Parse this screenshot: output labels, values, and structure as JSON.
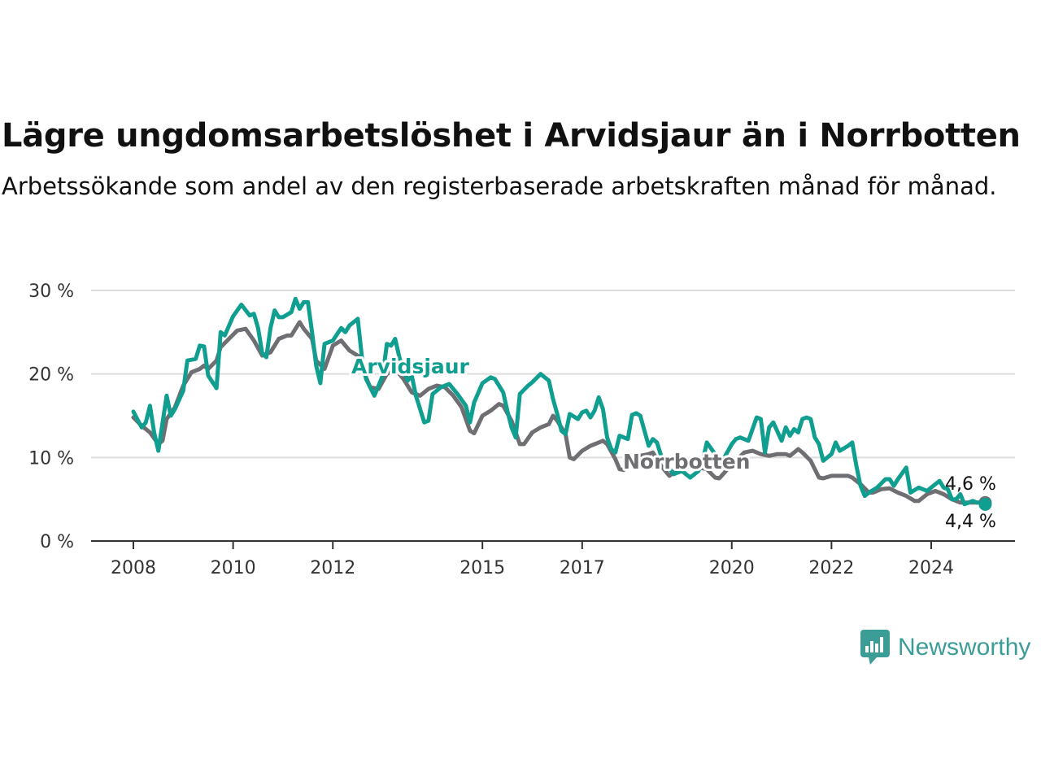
{
  "title": "Lägre ungdomsarbetslöshet i Arvidsjaur än i Norrbotten",
  "subtitle": "Arbetssökande som andel av den registerbaserade arbetskraften månad för månad.",
  "logo_text": "Newsworthy",
  "colors": {
    "arvidsjaur": "#0f9e8f",
    "norrbotten": "#6e6e73",
    "grid": "#dddddd",
    "axis": "#333333",
    "logo": "#3c9d96"
  },
  "chart_data": {
    "type": "line",
    "title": "Lägre ungdomsarbetslöshet i Arvidsjaur än i Norrbotten",
    "ylim": [
      0,
      30
    ],
    "yticks": [
      0,
      10,
      20,
      30
    ],
    "ytick_labels": [
      "0 %",
      "10 %",
      "20 %",
      "30 %"
    ],
    "xlim": [
      "2008-01",
      "2024-12"
    ],
    "xticks": [
      "2008-01",
      "2010-01",
      "2012-01",
      "2015-01",
      "2017-01",
      "2020-01",
      "2022-01",
      "2024-01"
    ],
    "xtick_labels": [
      "2008",
      "2010",
      "2012",
      "2015",
      "2017",
      "2020",
      "2022",
      "2024"
    ],
    "grid": true,
    "legend": "direct labels",
    "end_labels": [
      "4,6 %",
      "4,4 %"
    ],
    "series": [
      {
        "name": "Arvidsjaur",
        "points": [
          [
            "2008-01",
            15.5
          ],
          [
            "2008-03",
            13.6
          ],
          [
            "2008-04",
            14.2
          ],
          [
            "2008-05",
            16.2
          ],
          [
            "2008-06",
            13.0
          ],
          [
            "2008-07",
            10.8
          ],
          [
            "2008-09",
            17.4
          ],
          [
            "2008-10",
            15.0
          ],
          [
            "2008-11",
            15.8
          ],
          [
            "2009-01",
            18.0
          ],
          [
            "2009-02",
            21.6
          ],
          [
            "2009-04",
            21.8
          ],
          [
            "2009-05",
            23.4
          ],
          [
            "2009-06",
            23.3
          ],
          [
            "2009-07",
            19.8
          ],
          [
            "2009-09",
            18.3
          ],
          [
            "2009-10",
            25.0
          ],
          [
            "2009-11",
            24.6
          ],
          [
            "2010-01",
            26.9
          ],
          [
            "2010-03",
            28.3
          ],
          [
            "2010-05",
            27.0
          ],
          [
            "2010-06",
            27.2
          ],
          [
            "2010-07",
            25.5
          ],
          [
            "2010-08",
            22.5
          ],
          [
            "2010-09",
            22.0
          ],
          [
            "2010-10",
            25.5
          ],
          [
            "2010-11",
            27.6
          ],
          [
            "2010-12",
            26.8
          ],
          [
            "2011-01",
            26.8
          ],
          [
            "2011-03",
            27.4
          ],
          [
            "2011-04",
            29.0
          ],
          [
            "2011-05",
            27.8
          ],
          [
            "2011-06",
            28.6
          ],
          [
            "2011-07",
            28.6
          ],
          [
            "2011-08",
            25.0
          ],
          [
            "2011-09",
            21.0
          ],
          [
            "2011-10",
            18.9
          ],
          [
            "2011-11",
            23.6
          ],
          [
            "2012-01",
            24.0
          ],
          [
            "2012-03",
            25.5
          ],
          [
            "2012-04",
            25.0
          ],
          [
            "2012-05",
            25.8
          ],
          [
            "2012-07",
            26.6
          ],
          [
            "2012-08",
            22.0
          ],
          [
            "2012-09",
            19.4
          ],
          [
            "2012-11",
            17.4
          ],
          [
            "2013-01",
            19.8
          ],
          [
            "2013-02",
            23.6
          ],
          [
            "2013-03",
            23.4
          ],
          [
            "2013-04",
            24.2
          ],
          [
            "2013-05",
            22.0
          ],
          [
            "2013-06",
            20.6
          ],
          [
            "2013-07",
            19.2
          ],
          [
            "2013-08",
            19.8
          ],
          [
            "2013-09",
            17.4
          ],
          [
            "2013-11",
            14.2
          ],
          [
            "2013-12",
            14.4
          ],
          [
            "2014-01",
            17.6
          ],
          [
            "2014-03",
            18.4
          ],
          [
            "2014-05",
            18.8
          ],
          [
            "2014-07",
            17.6
          ],
          [
            "2014-09",
            16.2
          ],
          [
            "2014-10",
            14.2
          ],
          [
            "2014-11",
            16.6
          ],
          [
            "2015-01",
            18.9
          ],
          [
            "2015-03",
            19.6
          ],
          [
            "2015-04",
            19.4
          ],
          [
            "2015-06",
            17.8
          ],
          [
            "2015-07",
            15.6
          ],
          [
            "2015-08",
            13.6
          ],
          [
            "2015-09",
            12.4
          ],
          [
            "2015-10",
            17.6
          ],
          [
            "2015-12",
            18.6
          ],
          [
            "2016-01",
            19.0
          ],
          [
            "2016-03",
            20.0
          ],
          [
            "2016-05",
            19.2
          ],
          [
            "2016-06",
            17.0
          ],
          [
            "2016-07",
            15.2
          ],
          [
            "2016-08",
            13.2
          ],
          [
            "2016-09",
            12.8
          ],
          [
            "2016-10",
            15.2
          ],
          [
            "2016-12",
            14.6
          ],
          [
            "2017-01",
            15.4
          ],
          [
            "2017-02",
            15.6
          ],
          [
            "2017-03",
            14.8
          ],
          [
            "2017-04",
            15.6
          ],
          [
            "2017-05",
            17.2
          ],
          [
            "2017-06",
            15.8
          ],
          [
            "2017-07",
            12.4
          ],
          [
            "2017-08",
            11.0
          ],
          [
            "2017-09",
            10.6
          ],
          [
            "2017-10",
            12.6
          ],
          [
            "2017-12",
            12.2
          ],
          [
            "2018-01",
            15.1
          ],
          [
            "2018-02",
            15.3
          ],
          [
            "2018-03",
            15.0
          ],
          [
            "2018-05",
            11.4
          ],
          [
            "2018-06",
            12.2
          ],
          [
            "2018-07",
            11.8
          ],
          [
            "2018-08",
            10.2
          ],
          [
            "2018-09",
            9.4
          ],
          [
            "2018-11",
            8.0
          ],
          [
            "2019-01",
            8.4
          ],
          [
            "2019-03",
            7.6
          ],
          [
            "2019-05",
            8.4
          ],
          [
            "2019-06",
            9.6
          ],
          [
            "2019-07",
            11.8
          ],
          [
            "2019-09",
            10.4
          ],
          [
            "2019-10",
            9.0
          ],
          [
            "2019-11",
            9.8
          ],
          [
            "2020-01",
            11.6
          ],
          [
            "2020-02",
            12.2
          ],
          [
            "2020-03",
            12.4
          ],
          [
            "2020-05",
            12.0
          ],
          [
            "2020-07",
            14.8
          ],
          [
            "2020-08",
            14.6
          ],
          [
            "2020-09",
            10.6
          ],
          [
            "2020-10",
            13.6
          ],
          [
            "2020-11",
            14.2
          ],
          [
            "2021-01",
            12.0
          ],
          [
            "2021-02",
            13.6
          ],
          [
            "2021-03",
            12.6
          ],
          [
            "2021-04",
            13.4
          ],
          [
            "2021-05",
            13.0
          ],
          [
            "2021-06",
            14.6
          ],
          [
            "2021-07",
            14.8
          ],
          [
            "2021-08",
            14.6
          ],
          [
            "2021-09",
            12.4
          ],
          [
            "2021-10",
            11.6
          ],
          [
            "2021-11",
            9.6
          ],
          [
            "2022-01",
            10.4
          ],
          [
            "2022-02",
            11.8
          ],
          [
            "2022-03",
            10.8
          ],
          [
            "2022-05",
            11.4
          ],
          [
            "2022-06",
            11.8
          ],
          [
            "2022-07",
            9.0
          ],
          [
            "2022-08",
            6.6
          ],
          [
            "2022-09",
            5.4
          ],
          [
            "2022-10",
            5.8
          ],
          [
            "2022-12",
            6.4
          ],
          [
            "2023-02",
            7.4
          ],
          [
            "2023-03",
            7.4
          ],
          [
            "2023-04",
            6.6
          ],
          [
            "2023-05",
            7.4
          ],
          [
            "2023-07",
            8.8
          ],
          [
            "2023-08",
            5.8
          ],
          [
            "2023-10",
            6.4
          ],
          [
            "2023-12",
            6.0
          ],
          [
            "2024-01",
            6.4
          ],
          [
            "2024-03",
            7.2
          ],
          [
            "2024-04",
            6.4
          ],
          [
            "2024-05",
            6.2
          ],
          [
            "2024-06",
            5.0
          ],
          [
            "2024-07",
            5.0
          ],
          [
            "2024-08",
            5.6
          ],
          [
            "2024-09",
            4.4
          ],
          [
            "2024-10",
            4.6
          ],
          [
            "2024-11",
            4.8
          ],
          [
            "2024-12",
            4.6
          ],
          [
            "2025-01",
            4.6
          ],
          [
            "2025-02",
            4.4
          ]
        ]
      },
      {
        "name": "Norrbotten",
        "points": [
          [
            "2008-01",
            14.8
          ],
          [
            "2008-03",
            13.8
          ],
          [
            "2008-05",
            13.0
          ],
          [
            "2008-07",
            11.6
          ],
          [
            "2008-08",
            12.0
          ],
          [
            "2008-09",
            14.6
          ],
          [
            "2008-11",
            16.0
          ],
          [
            "2009-01",
            18.6
          ],
          [
            "2009-03",
            20.2
          ],
          [
            "2009-05",
            20.6
          ],
          [
            "2009-06",
            21.0
          ],
          [
            "2009-07",
            20.6
          ],
          [
            "2009-09",
            21.6
          ],
          [
            "2009-10",
            23.2
          ],
          [
            "2009-12",
            24.2
          ],
          [
            "2010-02",
            25.2
          ],
          [
            "2010-04",
            25.4
          ],
          [
            "2010-06",
            24.0
          ],
          [
            "2010-08",
            22.2
          ],
          [
            "2010-10",
            22.6
          ],
          [
            "2010-12",
            24.2
          ],
          [
            "2011-02",
            24.6
          ],
          [
            "2011-03",
            24.6
          ],
          [
            "2011-05",
            26.2
          ],
          [
            "2011-06",
            25.4
          ],
          [
            "2011-08",
            24.2
          ],
          [
            "2011-09",
            21.6
          ],
          [
            "2011-11",
            20.6
          ],
          [
            "2012-01",
            23.4
          ],
          [
            "2012-03",
            24.0
          ],
          [
            "2012-05",
            22.8
          ],
          [
            "2012-07",
            22.2
          ],
          [
            "2012-08",
            20.8
          ],
          [
            "2012-10",
            18.4
          ],
          [
            "2012-12",
            18.2
          ],
          [
            "2013-02",
            20.0
          ],
          [
            "2013-04",
            20.6
          ],
          [
            "2013-06",
            19.4
          ],
          [
            "2013-08",
            17.8
          ],
          [
            "2013-10",
            17.4
          ],
          [
            "2013-12",
            18.2
          ],
          [
            "2014-02",
            18.6
          ],
          [
            "2014-04",
            18.4
          ],
          [
            "2014-06",
            17.4
          ],
          [
            "2014-08",
            16.0
          ],
          [
            "2014-10",
            13.2
          ],
          [
            "2014-11",
            12.9
          ],
          [
            "2015-01",
            15.0
          ],
          [
            "2015-03",
            15.6
          ],
          [
            "2015-05",
            16.4
          ],
          [
            "2015-06",
            16.2
          ],
          [
            "2015-08",
            14.4
          ],
          [
            "2015-10",
            11.6
          ],
          [
            "2015-11",
            11.6
          ],
          [
            "2016-01",
            13.0
          ],
          [
            "2016-03",
            13.6
          ],
          [
            "2016-05",
            14.0
          ],
          [
            "2016-06",
            15.0
          ],
          [
            "2016-07",
            14.4
          ],
          [
            "2016-09",
            12.8
          ],
          [
            "2016-10",
            10.0
          ],
          [
            "2016-11",
            9.8
          ],
          [
            "2017-01",
            10.8
          ],
          [
            "2017-03",
            11.4
          ],
          [
            "2017-05",
            11.8
          ],
          [
            "2017-06",
            12.0
          ],
          [
            "2017-07",
            11.6
          ],
          [
            "2017-09",
            9.8
          ],
          [
            "2017-10",
            8.6
          ],
          [
            "2017-11",
            8.5
          ],
          [
            "2018-01",
            9.6
          ],
          [
            "2018-03",
            10.2
          ],
          [
            "2018-05",
            10.4
          ],
          [
            "2018-06",
            10.6
          ],
          [
            "2018-08",
            9.0
          ],
          [
            "2018-10",
            7.8
          ],
          [
            "2018-12",
            8.6
          ],
          [
            "2019-02",
            8.8
          ],
          [
            "2019-03",
            9.0
          ],
          [
            "2019-05",
            8.8
          ],
          [
            "2019-07",
            8.6
          ],
          [
            "2019-09",
            7.6
          ],
          [
            "2019-10",
            7.5
          ],
          [
            "2019-12",
            8.6
          ],
          [
            "2020-02",
            9.6
          ],
          [
            "2020-04",
            10.6
          ],
          [
            "2020-06",
            10.8
          ],
          [
            "2020-08",
            10.4
          ],
          [
            "2020-10",
            10.2
          ],
          [
            "2020-12",
            10.4
          ],
          [
            "2021-02",
            10.4
          ],
          [
            "2021-03",
            10.2
          ],
          [
            "2021-05",
            11.0
          ],
          [
            "2021-06",
            10.6
          ],
          [
            "2021-08",
            9.6
          ],
          [
            "2021-09",
            8.6
          ],
          [
            "2021-10",
            7.6
          ],
          [
            "2021-11",
            7.5
          ],
          [
            "2022-01",
            7.8
          ],
          [
            "2022-03",
            7.8
          ],
          [
            "2022-05",
            7.8
          ],
          [
            "2022-06",
            7.6
          ],
          [
            "2022-08",
            6.8
          ],
          [
            "2022-10",
            5.8
          ],
          [
            "2022-11",
            5.8
          ],
          [
            "2023-01",
            6.2
          ],
          [
            "2023-03",
            6.3
          ],
          [
            "2023-05",
            5.8
          ],
          [
            "2023-07",
            5.4
          ],
          [
            "2023-09",
            4.8
          ],
          [
            "2023-10",
            4.8
          ],
          [
            "2023-12",
            5.6
          ],
          [
            "2024-02",
            6.0
          ],
          [
            "2024-04",
            5.6
          ],
          [
            "2024-06",
            5.0
          ],
          [
            "2024-08",
            4.6
          ],
          [
            "2024-10",
            4.6
          ],
          [
            "2024-12",
            4.6
          ],
          [
            "2025-02",
            4.6
          ]
        ]
      }
    ]
  }
}
